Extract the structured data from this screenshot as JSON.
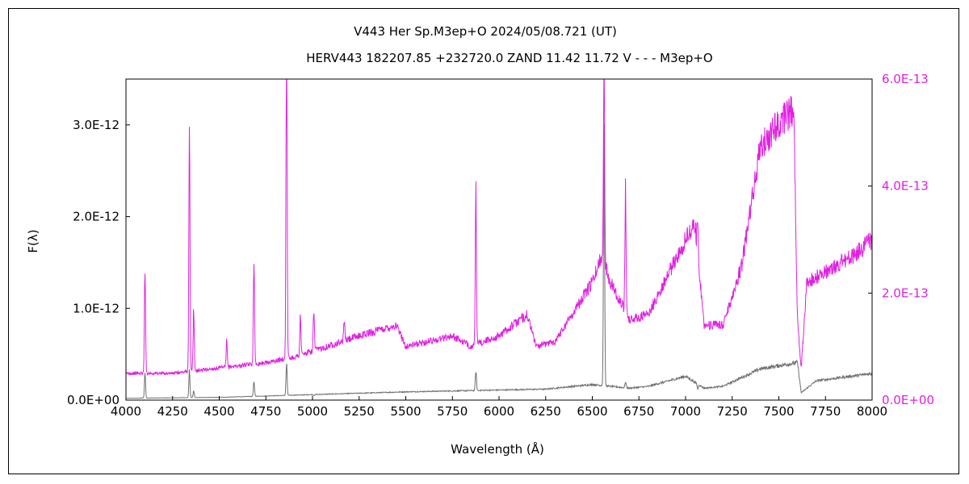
{
  "chart_data": {
    "type": "line",
    "title": "V443 Her    Sp.M3ep+O    2024/05/08.721 (UT)",
    "subtitle": "HERV443 182207.85 +232720.0 ZAND 11.42 11.72 V - - - M3ep+O",
    "xlabel": "Wavelength (Å)",
    "ylabel": "F(λ)",
    "xlim": [
      4000,
      8000
    ],
    "xticks": [
      4000,
      4250,
      4500,
      4750,
      5000,
      5250,
      5500,
      5750,
      6000,
      6250,
      6500,
      6750,
      7000,
      7250,
      7500,
      7750,
      8000
    ],
    "y_left": {
      "lim": [
        0,
        3.5e-12
      ],
      "ticks": [
        0,
        1e-12,
        2e-12,
        3e-12
      ],
      "tick_labels": [
        "0.0E+00",
        "1.0E-12",
        "2.0E-12",
        "3.0E-12"
      ]
    },
    "y_right": {
      "lim": [
        0,
        6e-13
      ],
      "ticks": [
        0,
        2e-13,
        4e-13,
        6e-13
      ],
      "tick_labels": [
        "0.0E+00",
        "2.0E-13",
        "4.0E-13",
        "6.0E-13"
      ],
      "color": "#e020e0"
    },
    "series": [
      {
        "axis": "left",
        "color": "#707070",
        "continuum": [
          [
            4000,
            2e-14
          ],
          [
            4500,
            3e-14
          ],
          [
            5000,
            6e-14
          ],
          [
            5500,
            9e-14
          ],
          [
            6000,
            1.1e-13
          ],
          [
            6250,
            1.2e-13
          ],
          [
            6500,
            1.7e-13
          ],
          [
            6700,
            1.3e-13
          ],
          [
            6800,
            1.5e-13
          ],
          [
            7000,
            2.6e-13
          ],
          [
            7100,
            1.3e-13
          ],
          [
            7200,
            1.5e-13
          ],
          [
            7400,
            3.4e-13
          ],
          [
            7600,
            4.1e-13
          ],
          [
            7620,
            8e-14
          ],
          [
            7700,
            2.1e-13
          ],
          [
            8000,
            2.9e-13
          ]
        ],
        "lines": [
          [
            4102,
            3e-13
          ],
          [
            4340,
            3.2e-13
          ],
          [
            4363,
            1e-13
          ],
          [
            4686,
            2e-13
          ],
          [
            4861,
            4e-13
          ],
          [
            5007,
            5e-14
          ],
          [
            5876,
            3.2e-13
          ],
          [
            6563,
            3.05e-12
          ],
          [
            6678,
            2e-13
          ],
          [
            7065,
            1.2e-13
          ]
        ]
      },
      {
        "axis": "right",
        "color": "#e020e0",
        "continuum": [
          [
            4000,
            5e-14
          ],
          [
            4250,
            5e-14
          ],
          [
            4500,
            6e-14
          ],
          [
            4750,
            7e-14
          ],
          [
            4900,
            8e-14
          ],
          [
            5250,
            1.2e-13
          ],
          [
            5450,
            1.4e-13
          ],
          [
            5500,
            1e-13
          ],
          [
            5750,
            1.2e-13
          ],
          [
            5850,
            1e-13
          ],
          [
            6000,
            1.2e-13
          ],
          [
            6150,
            1.6e-13
          ],
          [
            6200,
            1e-13
          ],
          [
            6300,
            1.1e-13
          ],
          [
            6500,
            2.2e-13
          ],
          [
            6550,
            2.7e-13
          ],
          [
            6600,
            2.2e-13
          ],
          [
            6700,
            1.5e-13
          ],
          [
            6800,
            1.6e-13
          ],
          [
            6900,
            2.3e-13
          ],
          [
            7000,
            3e-13
          ],
          [
            7050,
            3.3e-13
          ],
          [
            7100,
            1.4e-13
          ],
          [
            7200,
            1.4e-13
          ],
          [
            7300,
            2.5e-13
          ],
          [
            7400,
            4.7e-13
          ],
          [
            7500,
            5.2e-13
          ],
          [
            7570,
            5.4e-13
          ],
          [
            7580,
            5.4e-13
          ],
          [
            7600,
            1.5e-13
          ],
          [
            7620,
            6e-14
          ],
          [
            7650,
            2.2e-13
          ],
          [
            7750,
            2.4e-13
          ],
          [
            7900,
            2.7e-13
          ],
          [
            8000,
            3e-13
          ]
        ],
        "lines": [
          [
            4102,
            2.5e-13
          ],
          [
            4340,
            5.2e-13
          ],
          [
            4363,
            1.7e-13
          ],
          [
            4540,
            1.1e-13
          ],
          [
            4686,
            2.7e-13
          ],
          [
            4861,
            7.5e-13
          ],
          [
            4935,
            1.6e-13
          ],
          [
            5007,
            1.7e-13
          ],
          [
            5170,
            1.5e-13
          ],
          [
            5876,
            3.9e-13
          ],
          [
            6563,
            7e-13
          ],
          [
            6678,
            4e-13
          ],
          [
            7065,
            3.5e-13
          ]
        ]
      }
    ]
  }
}
